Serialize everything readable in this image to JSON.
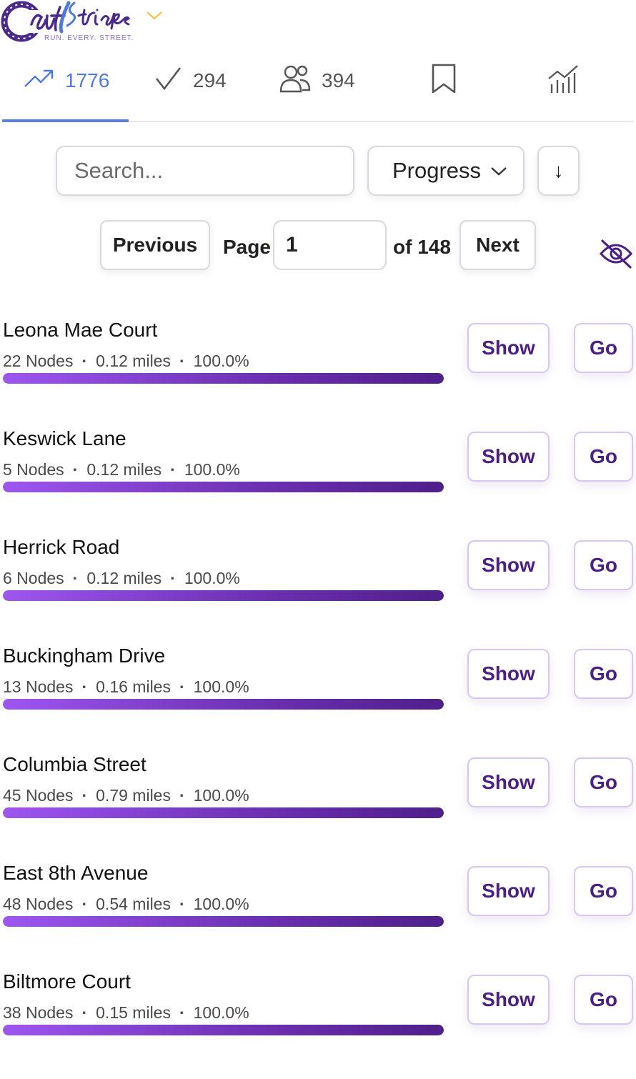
{
  "header": {
    "logo_text": "CityStrides",
    "tagline": "RUN. EVERY. STREET.",
    "menu_icon": "chevron-down-icon"
  },
  "tabs": [
    {
      "icon": "trending-up-icon",
      "count": "1776",
      "active": true
    },
    {
      "icon": "check-icon",
      "count": "294",
      "active": false
    },
    {
      "icon": "users-icon",
      "count": "394",
      "active": false
    },
    {
      "icon": "bookmark-icon",
      "count": "",
      "active": false
    },
    {
      "icon": "chart-icon",
      "count": "",
      "active": false
    }
  ],
  "controls": {
    "search_placeholder": "Search...",
    "sort_value": "Progress",
    "sort_direction": "↓"
  },
  "pagination": {
    "previous_label": "Previous",
    "page_label": "Page",
    "page_value": "1",
    "of_label": "of 148",
    "next_label": "Next"
  },
  "colors": {
    "accent": "#4f7be0",
    "brand_purple": "#4c1f86",
    "progress_start": "#9e56f0",
    "progress_end": "#4f1f8a"
  },
  "streets": [
    {
      "name": "Leona Mae Court",
      "nodes": "22 Nodes",
      "distance": "0.12 miles",
      "percent": "100.0%",
      "progress": 1.0,
      "show_label": "Show",
      "go_label": "Go"
    },
    {
      "name": "Keswick Lane",
      "nodes": "5 Nodes",
      "distance": "0.12 miles",
      "percent": "100.0%",
      "progress": 1.0,
      "show_label": "Show",
      "go_label": "Go"
    },
    {
      "name": "Herrick Road",
      "nodes": "6 Nodes",
      "distance": "0.12 miles",
      "percent": "100.0%",
      "progress": 1.0,
      "show_label": "Show",
      "go_label": "Go"
    },
    {
      "name": "Buckingham Drive",
      "nodes": "13 Nodes",
      "distance": "0.16 miles",
      "percent": "100.0%",
      "progress": 1.0,
      "show_label": "Show",
      "go_label": "Go"
    },
    {
      "name": "Columbia Street",
      "nodes": "45 Nodes",
      "distance": "0.79 miles",
      "percent": "100.0%",
      "progress": 1.0,
      "show_label": "Show",
      "go_label": "Go"
    },
    {
      "name": "East 8th Avenue",
      "nodes": "48 Nodes",
      "distance": "0.54 miles",
      "percent": "100.0%",
      "progress": 1.0,
      "show_label": "Show",
      "go_label": "Go"
    },
    {
      "name": "Biltmore Court",
      "nodes": "38 Nodes",
      "distance": "0.15 miles",
      "percent": "100.0%",
      "progress": 1.0,
      "show_label": "Show",
      "go_label": "Go"
    }
  ]
}
